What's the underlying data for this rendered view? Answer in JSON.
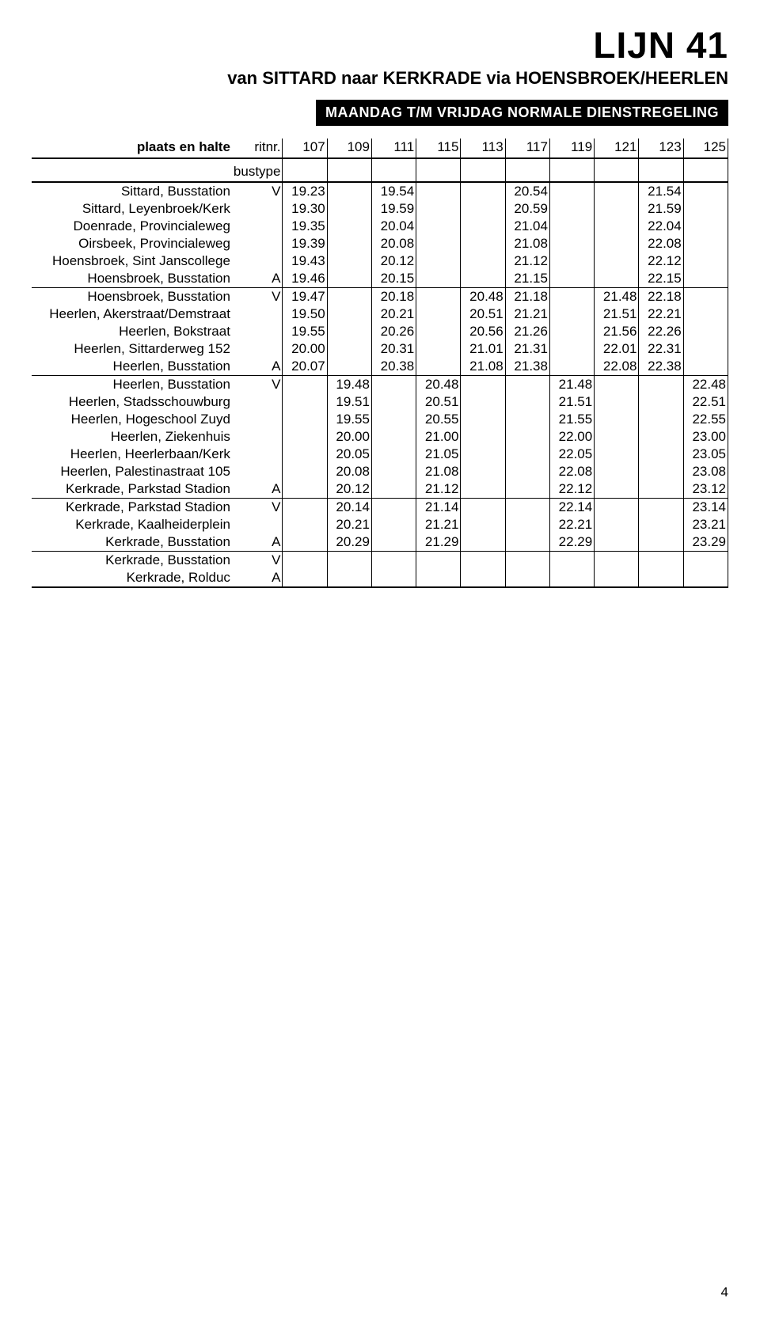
{
  "header": {
    "line_title": "LIJN 41",
    "route": "van SITTARD naar KERKRADE via HOENSBROEK/HEERLEN",
    "schedule_label": "MAANDAG T/M VRIJDAG NORMALE DIENSTREGELING"
  },
  "timetable": {
    "columns_label": "plaats en halte",
    "ritnr_label": "ritnr.",
    "bustype_label": "bustype",
    "trip_numbers": [
      "107",
      "109",
      "111",
      "115",
      "113",
      "117",
      "119",
      "121",
      "123",
      "125"
    ]
  },
  "rows": [
    {
      "stop": "Sittard, Busstation",
      "av": "V",
      "times": [
        "19.23",
        "",
        "19.54",
        "",
        "",
        "20.54",
        "",
        "",
        "21.54",
        ""
      ]
    },
    {
      "stop": "Sittard, Leyenbroek/Kerk",
      "av": "",
      "times": [
        "19.30",
        "",
        "19.59",
        "",
        "",
        "20.59",
        "",
        "",
        "21.59",
        ""
      ]
    },
    {
      "stop": "Doenrade, Provincialeweg",
      "av": "",
      "times": [
        "19.35",
        "",
        "20.04",
        "",
        "",
        "21.04",
        "",
        "",
        "22.04",
        ""
      ]
    },
    {
      "stop": "Oirsbeek, Provincialeweg",
      "av": "",
      "times": [
        "19.39",
        "",
        "20.08",
        "",
        "",
        "21.08",
        "",
        "",
        "22.08",
        ""
      ]
    },
    {
      "stop": "Hoensbroek, Sint Janscollege",
      "av": "",
      "times": [
        "19.43",
        "",
        "20.12",
        "",
        "",
        "21.12",
        "",
        "",
        "22.12",
        ""
      ]
    },
    {
      "stop": "Hoensbroek, Busstation",
      "av": "A",
      "times": [
        "19.46",
        "",
        "20.15",
        "",
        "",
        "21.15",
        "",
        "",
        "22.15",
        ""
      ]
    },
    {
      "stop": "Hoensbroek, Busstation",
      "av": "V",
      "times": [
        "19.47",
        "",
        "20.18",
        "",
        "20.48",
        "21.18",
        "",
        "21.48",
        "22.18",
        ""
      ],
      "sep": true
    },
    {
      "stop": "Heerlen, Akerstraat/Demstraat",
      "av": "",
      "times": [
        "19.50",
        "",
        "20.21",
        "",
        "20.51",
        "21.21",
        "",
        "21.51",
        "22.21",
        ""
      ]
    },
    {
      "stop": "Heerlen, Bokstraat",
      "av": "",
      "times": [
        "19.55",
        "",
        "20.26",
        "",
        "20.56",
        "21.26",
        "",
        "21.56",
        "22.26",
        ""
      ]
    },
    {
      "stop": "Heerlen, Sittarderweg 152",
      "av": "",
      "times": [
        "20.00",
        "",
        "20.31",
        "",
        "21.01",
        "21.31",
        "",
        "22.01",
        "22.31",
        ""
      ]
    },
    {
      "stop": "Heerlen, Busstation",
      "av": "A",
      "times": [
        "20.07",
        "",
        "20.38",
        "",
        "21.08",
        "21.38",
        "",
        "22.08",
        "22.38",
        ""
      ]
    },
    {
      "stop": "Heerlen, Busstation",
      "av": "V",
      "times": [
        "",
        "19.48",
        "",
        "20.48",
        "",
        "",
        "21.48",
        "",
        "",
        "22.48"
      ],
      "sep": true
    },
    {
      "stop": "Heerlen, Stadsschouwburg",
      "av": "",
      "times": [
        "",
        "19.51",
        "",
        "20.51",
        "",
        "",
        "21.51",
        "",
        "",
        "22.51"
      ]
    },
    {
      "stop": "Heerlen, Hogeschool Zuyd",
      "av": "",
      "times": [
        "",
        "19.55",
        "",
        "20.55",
        "",
        "",
        "21.55",
        "",
        "",
        "22.55"
      ]
    },
    {
      "stop": "Heerlen, Ziekenhuis",
      "av": "",
      "times": [
        "",
        "20.00",
        "",
        "21.00",
        "",
        "",
        "22.00",
        "",
        "",
        "23.00"
      ]
    },
    {
      "stop": "Heerlen, Heerlerbaan/Kerk",
      "av": "",
      "times": [
        "",
        "20.05",
        "",
        "21.05",
        "",
        "",
        "22.05",
        "",
        "",
        "23.05"
      ]
    },
    {
      "stop": "Heerlen, Palestinastraat 105",
      "av": "",
      "times": [
        "",
        "20.08",
        "",
        "21.08",
        "",
        "",
        "22.08",
        "",
        "",
        "23.08"
      ]
    },
    {
      "stop": "Kerkrade, Parkstad Stadion",
      "av": "A",
      "times": [
        "",
        "20.12",
        "",
        "21.12",
        "",
        "",
        "22.12",
        "",
        "",
        "23.12"
      ]
    },
    {
      "stop": "Kerkrade, Parkstad Stadion",
      "av": "V",
      "times": [
        "",
        "20.14",
        "",
        "21.14",
        "",
        "",
        "22.14",
        "",
        "",
        "23.14"
      ],
      "sep": true
    },
    {
      "stop": "Kerkrade, Kaalheiderplein",
      "av": "",
      "times": [
        "",
        "20.21",
        "",
        "21.21",
        "",
        "",
        "22.21",
        "",
        "",
        "23.21"
      ]
    },
    {
      "stop": "Kerkrade, Busstation",
      "av": "A",
      "times": [
        "",
        "20.29",
        "",
        "21.29",
        "",
        "",
        "22.29",
        "",
        "",
        "23.29"
      ]
    },
    {
      "stop": "Kerkrade, Busstation",
      "av": "V",
      "times": [
        "",
        "",
        "",
        "",
        "",
        "",
        "",
        "",
        "",
        ""
      ],
      "sep": true
    },
    {
      "stop": "Kerkrade, Rolduc",
      "av": "A",
      "times": [
        "",
        "",
        "",
        "",
        "",
        "",
        "",
        "",
        "",
        ""
      ],
      "last": true
    }
  ],
  "page_number": "4"
}
